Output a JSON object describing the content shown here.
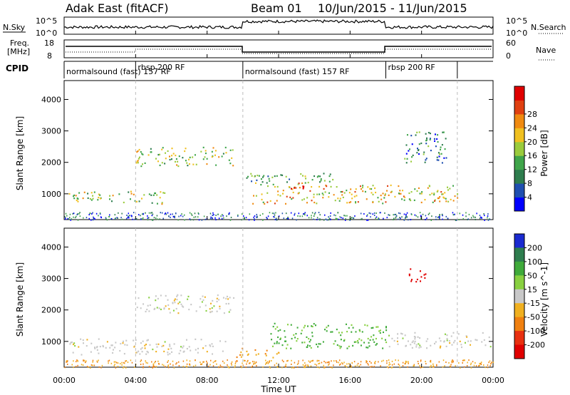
{
  "header": {
    "station": "Adak East (fitACF)",
    "beam": "Beam 01",
    "date_range": "10/Jun/2015 - 11/Jun/2015"
  },
  "nsky": {
    "label": "N.Sky",
    "ticks": [
      "10^5",
      "10^0"
    ],
    "right_label": "N.Search",
    "right_ticks": [
      "10^5",
      "10^0"
    ]
  },
  "freq": {
    "label_line1": "Freq.",
    "label_line2": "[MHz]",
    "ticks": [
      "18",
      "8"
    ],
    "right_label": "Nave",
    "right_ticks": [
      "60",
      "0"
    ]
  },
  "cpid": {
    "label": "CPID",
    "segments": [
      {
        "start_h": 0,
        "text": "normalsound (fast) 157 RF"
      },
      {
        "start_h": 4.0,
        "text": "rbsp 200 RF"
      },
      {
        "start_h": 10.0,
        "text": "normalsound (fast) 157 RF"
      },
      {
        "start_h": 18.0,
        "text": "rbsp 200 RF"
      },
      {
        "start_h": 22.0,
        "text": ""
      }
    ]
  },
  "power_panel": {
    "ylabel": "Slant Range [km]",
    "yticks": [
      "1000",
      "2000",
      "3000",
      "4000"
    ],
    "colorbar_label": "Power [dB]",
    "colorbar_ticks": [
      "4",
      "8",
      "12",
      "16",
      "20",
      "24",
      "28"
    ],
    "colors": [
      "#0000ff",
      "#1f4fb0",
      "#2e7d4e",
      "#3fa54a",
      "#9acb3c",
      "#f0c020",
      "#f08a10",
      "#e04010",
      "#e00000"
    ]
  },
  "velocity_panel": {
    "ylabel": "Slant Range [km]",
    "yticks": [
      "1000",
      "2000",
      "3000",
      "4000"
    ],
    "colorbar_label": "Velocity [m s^-1]",
    "colorbar_ticks": [
      "200",
      "100",
      "50",
      "15",
      "-15",
      "-50",
      "-100",
      "-200"
    ],
    "colors": [
      "#1a2ad0",
      "#2e7d4e",
      "#3faa3a",
      "#88d040",
      "#c8c8c8",
      "#f0b020",
      "#f08010",
      "#e83010",
      "#e00000"
    ]
  },
  "xaxis": {
    "label": "Time UT",
    "ticks": [
      "00:00",
      "04:00",
      "08:00",
      "12:00",
      "16:00",
      "20:00",
      "00:00"
    ]
  },
  "chart_data": {
    "type": "heatmap",
    "x_range_hours": [
      0,
      24
    ],
    "y_range_km": [
      180,
      4600
    ],
    "power_echo_bands": [
      {
        "t0": 0.2,
        "t1": 5.8,
        "r0": 700,
        "r1": 1100,
        "level": 4
      },
      {
        "t0": 4.0,
        "t1": 9.5,
        "r0": 1900,
        "r1": 2500,
        "level": 4
      },
      {
        "t0": 10.5,
        "t1": 22.0,
        "r0": 700,
        "r1": 1300,
        "level": 5
      },
      {
        "t0": 12.0,
        "t1": 13.5,
        "r0": 1100,
        "r1": 1400,
        "level": 7
      },
      {
        "t0": 10.0,
        "t1": 15.0,
        "r0": 1300,
        "r1": 1700,
        "level": 3
      },
      {
        "t0": 19.0,
        "t1": 21.5,
        "r0": 2000,
        "r1": 3000,
        "level": 2
      }
    ],
    "velocity_echo_bands": [
      {
        "t0": 0.2,
        "t1": 9.0,
        "r0": 600,
        "r1": 1100,
        "v": 0
      },
      {
        "t0": 4.0,
        "t1": 9.5,
        "r0": 1900,
        "r1": 2500,
        "v": 0
      },
      {
        "t0": 11.5,
        "t1": 18.0,
        "r0": 800,
        "r1": 1600,
        "v": 40
      },
      {
        "t0": 9.5,
        "t1": 12.0,
        "r0": 500,
        "r1": 800,
        "v": -40
      },
      {
        "t0": 18.0,
        "t1": 24.0,
        "r0": 800,
        "r1": 1300,
        "v": 0
      },
      {
        "t0": 19.2,
        "t1": 20.2,
        "r0": 2900,
        "r1": 3400,
        "v": -200
      }
    ]
  }
}
